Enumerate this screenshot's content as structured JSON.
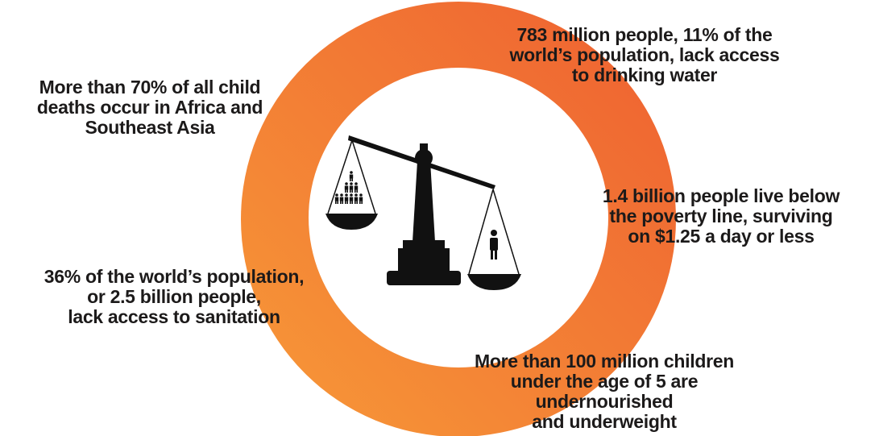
{
  "facts": [
    {
      "lines": [
        "783 million people, 11% of the",
        "world’s population, lack access",
        "to drinking water"
      ]
    },
    {
      "lines": [
        "More than 70% of all child",
        "deaths occur in Africa and",
        "Southeast Asia"
      ]
    },
    {
      "lines": [
        "1.4 billion people live below",
        "the poverty line, surviving",
        "on $1.25 a day or less"
      ]
    },
    {
      "lines": [
        "36% of the world’s population,",
        "or 2.5 billion people,",
        "lack access to sanitation"
      ]
    },
    {
      "lines": [
        "More than 100 million children",
        "under the age of 5 are",
        "undernourished",
        "and underweight"
      ]
    }
  ]
}
